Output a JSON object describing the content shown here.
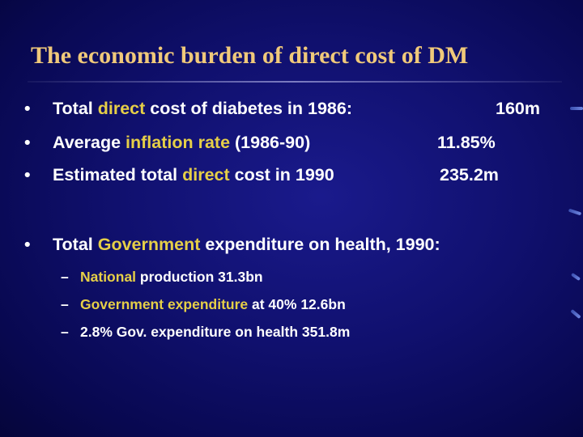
{
  "slide": {
    "title": "The economic burden of direct cost of DM",
    "bullets": [
      {
        "marker": "•",
        "pre": "Total ",
        "hl": "direct",
        "post": " cost of diabetes in 1986:",
        "value": "160m"
      },
      {
        "marker": "•",
        "pre": "Average ",
        "hl": "inflation rate",
        "post": " (1986-90)",
        "value": "11.85%"
      },
      {
        "marker": "•",
        "pre": "Estimated total ",
        "hl": "direct",
        "post": " cost in 1990",
        "value": "235.2m"
      }
    ],
    "bullet2": {
      "marker": "•",
      "pre": "Total ",
      "hl": "Government",
      "post": " expenditure on health, 1990:"
    },
    "subitems": [
      {
        "marker": "–",
        "hl": "National",
        "post": " production 31.3bn"
      },
      {
        "marker": "–",
        "hl": "Government expenditure",
        "post": " at 40% 12.6bn"
      },
      {
        "marker": "–",
        "hl": "",
        "post": "2.8% Gov. expenditure on health 351.8m"
      }
    ]
  },
  "colors": {
    "title": "#f0c97a",
    "highlight": "#e6cf47",
    "text": "#ffffff",
    "background": "#10106e"
  }
}
